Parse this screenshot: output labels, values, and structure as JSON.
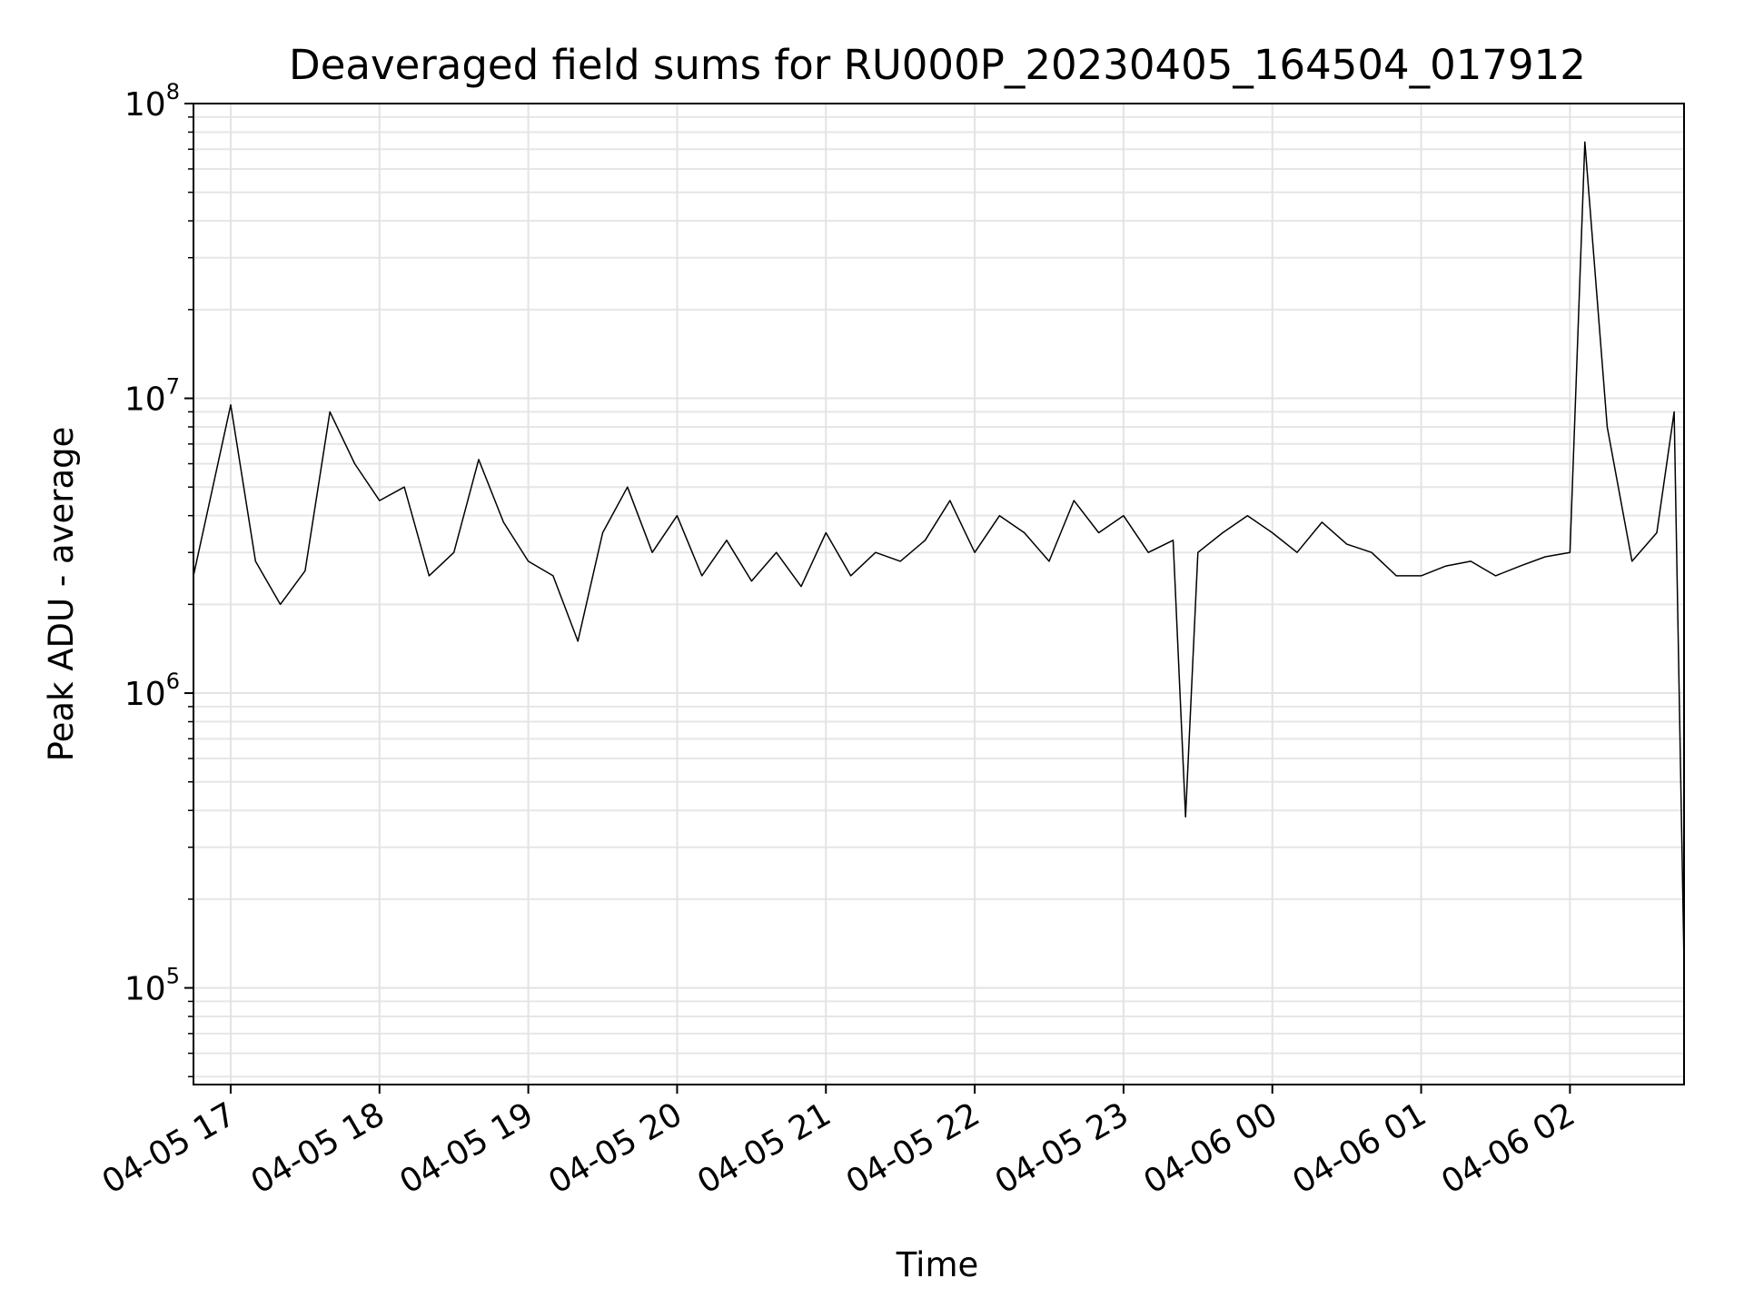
{
  "chart_data": {
    "type": "line",
    "title": "Deaveraged field sums for RU000P_20230405_164504_017912",
    "xlabel": "Time",
    "ylabel": "Peak ADU - average",
    "yscale": "log",
    "ylim": [
      47000,
      100000000
    ],
    "xlim": [
      "04-05 16:45",
      "04-06 02:46"
    ],
    "y_tick_labels": [
      {
        "base": "10",
        "exp": "5",
        "value": 100000
      },
      {
        "base": "10",
        "exp": "6",
        "value": 1000000
      },
      {
        "base": "10",
        "exp": "7",
        "value": 10000000
      },
      {
        "base": "10",
        "exp": "8",
        "value": 100000000
      }
    ],
    "x_tick_labels": [
      {
        "label": "04-05 17",
        "at": "04-05 17:00"
      },
      {
        "label": "04-05 18",
        "at": "04-05 18:00"
      },
      {
        "label": "04-05 19",
        "at": "04-05 19:00"
      },
      {
        "label": "04-05 20",
        "at": "04-05 20:00"
      },
      {
        "label": "04-05 21",
        "at": "04-05 21:00"
      },
      {
        "label": "04-05 22",
        "at": "04-05 22:00"
      },
      {
        "label": "04-05 23",
        "at": "04-05 23:00"
      },
      {
        "label": "04-06 00",
        "at": "04-06 00:00"
      },
      {
        "label": "04-06 01",
        "at": "04-06 01:00"
      },
      {
        "label": "04-06 02",
        "at": "04-06 02:00"
      }
    ],
    "grid": true,
    "line_color": "#000000",
    "series": [
      {
        "x": [
          "04-05 16:45",
          "04-05 17:00",
          "04-05 17:10",
          "04-05 17:20",
          "04-05 17:30",
          "04-05 17:40",
          "04-05 17:50",
          "04-05 18:00",
          "04-05 18:10",
          "04-05 18:20",
          "04-05 18:30",
          "04-05 18:40",
          "04-05 18:50",
          "04-05 19:00",
          "04-05 19:10",
          "04-05 19:20",
          "04-05 19:30",
          "04-05 19:40",
          "04-05 19:50",
          "04-05 20:00",
          "04-05 20:10",
          "04-05 20:20",
          "04-05 20:30",
          "04-05 20:40",
          "04-05 20:50",
          "04-05 21:00",
          "04-05 21:10",
          "04-05 21:20",
          "04-05 21:30",
          "04-05 21:40",
          "04-05 21:50",
          "04-05 22:00",
          "04-05 22:10",
          "04-05 22:20",
          "04-05 22:30",
          "04-05 22:40",
          "04-05 22:50",
          "04-05 23:00",
          "04-05 23:10",
          "04-05 23:20",
          "04-05 23:25",
          "04-05 23:30",
          "04-05 23:40",
          "04-05 23:50",
          "04-06 00:00",
          "04-06 00:10",
          "04-06 00:20",
          "04-06 00:30",
          "04-06 00:40",
          "04-06 00:50",
          "04-06 01:00",
          "04-06 01:10",
          "04-06 01:20",
          "04-06 01:30",
          "04-06 01:40",
          "04-06 01:50",
          "04-06 02:00",
          "04-06 02:06",
          "04-06 02:15",
          "04-06 02:25",
          "04-06 02:35",
          "04-06 02:42",
          "04-06 02:46"
        ],
        "values": [
          2500000,
          9500000,
          2800000,
          2000000,
          2600000,
          9000000,
          6000000,
          4500000,
          5000000,
          2500000,
          3000000,
          6200000,
          3800000,
          2800000,
          2500000,
          1500000,
          3500000,
          5000000,
          3000000,
          4000000,
          2500000,
          3300000,
          2400000,
          3000000,
          2300000,
          3500000,
          2500000,
          3000000,
          2800000,
          3300000,
          4500000,
          3000000,
          4000000,
          3500000,
          2800000,
          4500000,
          3500000,
          4000000,
          3000000,
          3300000,
          380000,
          3000000,
          3500000,
          4000000,
          3500000,
          3000000,
          3800000,
          3200000,
          3000000,
          2500000,
          2500000,
          2700000,
          2800000,
          2500000,
          2700000,
          2900000,
          3000000,
          74000000,
          8000000,
          2800000,
          3500000,
          9000000,
          120000
        ]
      }
    ]
  }
}
